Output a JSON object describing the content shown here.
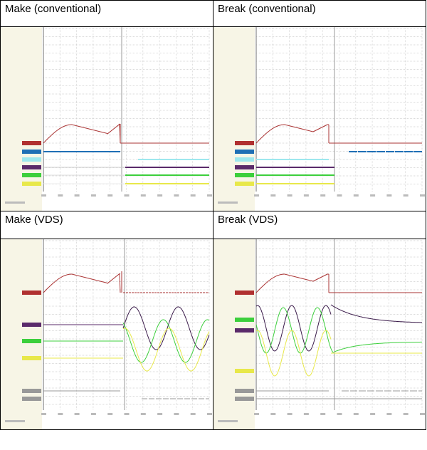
{
  "table": {
    "rows": [
      [
        "Make (conventional)",
        "Break (conventional)"
      ],
      [
        "Make (VDS)",
        "Break (VDS)"
      ]
    ]
  }
}
